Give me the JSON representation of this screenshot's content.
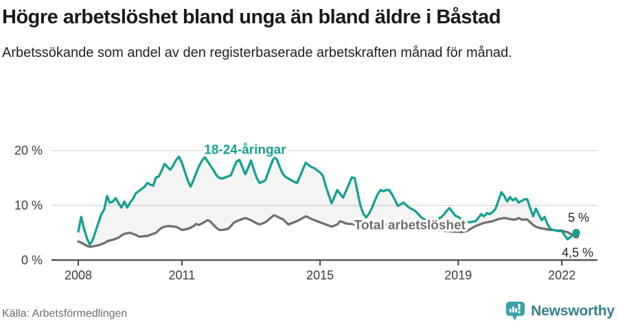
{
  "header": {
    "title": "Högre arbetslöshet bland unga än bland äldre i Båstad",
    "subtitle": "Arbetssökande som andel av den registerbaserade arbetskraften månad för månad."
  },
  "chart_data": {
    "type": "line",
    "x_start_year": 2008.0,
    "x_step_years": 0.083333,
    "x_ticks": [
      2008,
      2011,
      2015,
      2019,
      2022
    ],
    "y_ticks": [
      {
        "value": 0,
        "label": "0 %"
      },
      {
        "value": 10,
        "label": "10 %"
      },
      {
        "value": 20,
        "label": "20 %"
      }
    ],
    "ylim": [
      0,
      23
    ],
    "grid": true,
    "area_fill_between_series": true,
    "series": [
      {
        "name": "18-24-åringar",
        "color": "#14A090",
        "label_x_year": 2012.83,
        "label_y_value": 20.2,
        "end_label": "5 %",
        "values": [
          5.2,
          7.9,
          5.7,
          4.0,
          2.8,
          3.7,
          5.2,
          6.8,
          8.4,
          9.2,
          11.7,
          10.5,
          10.7,
          11.3,
          10.4,
          9.6,
          10.7,
          9.6,
          10.5,
          11.2,
          12.2,
          12.6,
          13.0,
          13.4,
          14.1,
          13.8,
          13.6,
          15.1,
          15.3,
          16.4,
          17.6,
          17.0,
          16.5,
          17.3,
          18.3,
          18.9,
          17.8,
          16.2,
          14.6,
          13.4,
          14.6,
          16.0,
          17.2,
          18.2,
          18.8,
          18.0,
          17.2,
          16.4,
          15.5,
          15.0,
          14.9,
          15.1,
          15.3,
          15.5,
          16.8,
          18.0,
          18.3,
          17.0,
          15.7,
          16.8,
          18.2,
          16.5,
          15.0,
          14.1,
          14.3,
          14.6,
          16.0,
          17.5,
          18.8,
          18.4,
          17.0,
          15.8,
          15.2,
          14.9,
          14.6,
          14.3,
          14.1,
          15.3,
          16.5,
          17.8,
          17.4,
          17.0,
          16.8,
          16.4,
          16.0,
          15.4,
          13.5,
          11.9,
          10.4,
          11.6,
          12.8,
          12.1,
          11.4,
          12.6,
          13.8,
          15.1,
          15.0,
          12.5,
          10.0,
          8.5,
          7.8,
          8.5,
          9.5,
          10.8,
          12.0,
          12.8,
          12.6,
          12.8,
          12.8,
          12.0,
          11.0,
          9.9,
          10.2,
          10.5,
          10.0,
          9.6,
          9.3,
          9.0,
          8.5,
          7.9,
          7.5,
          7.3,
          7.3,
          7.6,
          7.4,
          7.5,
          7.8,
          8.3,
          9.0,
          9.5,
          8.8,
          8.1,
          7.9,
          7.5,
          7.2,
          7.0,
          6.9,
          7.0,
          7.1,
          7.7,
          8.4,
          8.0,
          8.6,
          8.4,
          8.8,
          9.4,
          10.9,
          12.4,
          11.7,
          10.7,
          11.5,
          10.9,
          11.3,
          10.5,
          10.8,
          11.1,
          11.1,
          9.5,
          8.0,
          9.4,
          8.3,
          7.3,
          7.9,
          6.6,
          5.7,
          5.5,
          5.4,
          5.3,
          5.3,
          4.5,
          3.8,
          4.2,
          4.6,
          5.0
        ]
      },
      {
        "name": "Total arbetslöshet",
        "color": "#6F6F6F",
        "label_x_year": 2017.6,
        "label_y_value": 6.45,
        "end_label": "4,5 %",
        "values": [
          3.4,
          3.2,
          2.9,
          2.6,
          2.4,
          2.5,
          2.6,
          2.7,
          2.9,
          3.1,
          3.4,
          3.6,
          3.7,
          3.9,
          4.1,
          4.5,
          4.8,
          4.9,
          5.0,
          4.8,
          4.6,
          4.3,
          4.3,
          4.4,
          4.4,
          4.6,
          4.8,
          5.0,
          5.5,
          5.9,
          6.1,
          6.2,
          6.2,
          6.1,
          6.1,
          5.8,
          5.5,
          5.6,
          5.7,
          5.9,
          6.2,
          6.6,
          6.4,
          6.7,
          7.0,
          7.3,
          7.0,
          6.4,
          5.9,
          5.5,
          5.5,
          5.6,
          5.7,
          6.2,
          6.8,
          7.1,
          7.3,
          7.5,
          7.7,
          7.5,
          7.3,
          7.0,
          6.7,
          6.5,
          6.7,
          6.9,
          7.3,
          7.8,
          8.2,
          8.0,
          7.7,
          7.5,
          7.0,
          6.5,
          6.7,
          6.9,
          7.1,
          7.4,
          7.7,
          8.0,
          7.8,
          7.5,
          7.3,
          7.1,
          6.9,
          6.7,
          6.5,
          6.3,
          6.1,
          6.3,
          6.5,
          7.1,
          6.9,
          6.7,
          6.6,
          6.6,
          6.5,
          6.4,
          6.3,
          6.4,
          6.5,
          6.6,
          6.7,
          6.9,
          6.8,
          6.7,
          6.6,
          6.5,
          6.5,
          6.4,
          6.4,
          6.3,
          6.3,
          6.3,
          6.2,
          6.1,
          6.0,
          5.9,
          5.9,
          5.8,
          5.8,
          5.7,
          5.6,
          5.6,
          5.5,
          5.5,
          5.4,
          5.4,
          5.3,
          5.3,
          5.2,
          5.2,
          5.2,
          5.1,
          5.2,
          5.3,
          5.6,
          5.9,
          6.2,
          6.4,
          6.6,
          6.8,
          6.9,
          7.0,
          7.1,
          7.3,
          7.5,
          7.6,
          7.7,
          7.6,
          7.5,
          7.4,
          7.4,
          7.7,
          7.4,
          7.4,
          7.4,
          6.9,
          6.4,
          6.1,
          5.9,
          5.8,
          5.7,
          5.6,
          5.5,
          5.5,
          5.4,
          5.4,
          5.4,
          5.2,
          5.1,
          4.8,
          4.6,
          4.5
        ]
      }
    ],
    "colors": {
      "grid": "#DADADA",
      "axis": "#3F3F3F",
      "tick_text": "#3B3B3B",
      "end_label_text": "#222222",
      "area_fill": "rgba(128,128,128,0.085)"
    }
  },
  "footer": {
    "source": "Källa: Arbetsförmedlingen",
    "brand": "Newsworthy",
    "brand_icon": "newsworthy-speech-bubble-barchart-icon",
    "brand_icon_color": "#3AA3A8",
    "brand_text_color": "#35808D"
  }
}
